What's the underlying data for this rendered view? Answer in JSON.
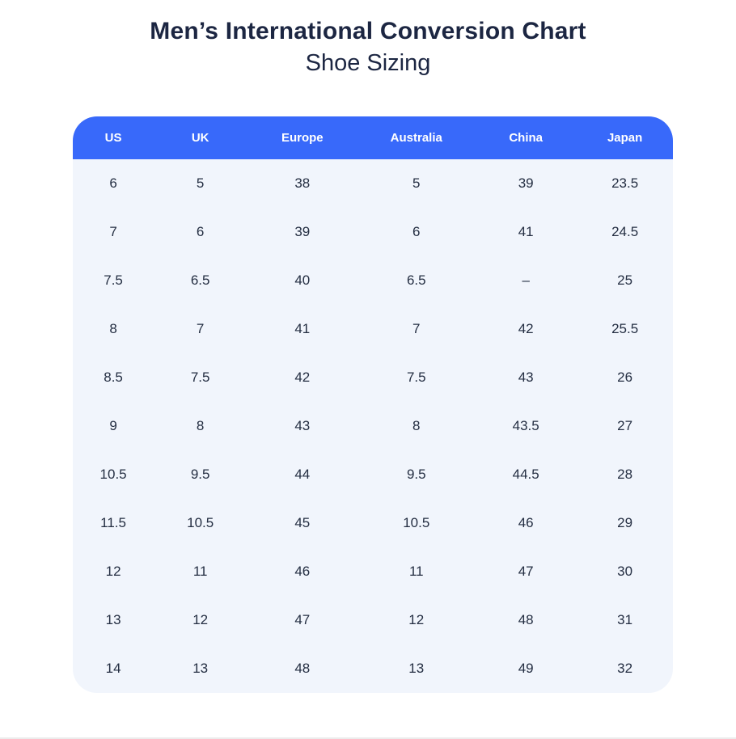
{
  "page": {
    "title": "Men’s International Conversion Chart",
    "subtitle": "Shoe Sizing"
  },
  "colors": {
    "header_bg": "#3869FA",
    "header_text": "#FFFFFF",
    "table_bg": "#F1F5FC",
    "title_text": "#1C2642",
    "cell_text": "#242E42",
    "page_bg": "#FFFFFF",
    "bottom_rule": "#ECECEC"
  },
  "chart_data": {
    "type": "table",
    "title": "Men’s International Conversion Chart",
    "subtitle": "Shoe Sizing",
    "columns": [
      "US",
      "UK",
      "Europe",
      "Australia",
      "China",
      "Japan"
    ],
    "rows": [
      [
        "6",
        "5",
        "38",
        "5",
        "39",
        "23.5"
      ],
      [
        "7",
        "6",
        "39",
        "6",
        "41",
        "24.5"
      ],
      [
        "7.5",
        "6.5",
        "40",
        "6.5",
        "–",
        "25"
      ],
      [
        "8",
        "7",
        "41",
        "7",
        "42",
        "25.5"
      ],
      [
        "8.5",
        "7.5",
        "42",
        "7.5",
        "43",
        "26"
      ],
      [
        "9",
        "8",
        "43",
        "8",
        "43.5",
        "27"
      ],
      [
        "10.5",
        "9.5",
        "44",
        "9.5",
        "44.5",
        "28"
      ],
      [
        "11.5",
        "10.5",
        "45",
        "10.5",
        "46",
        "29"
      ],
      [
        "12",
        "11",
        "46",
        "11",
        "47",
        "30"
      ],
      [
        "13",
        "12",
        "47",
        "12",
        "48",
        "31"
      ],
      [
        "14",
        "13",
        "48",
        "13",
        "49",
        "32"
      ]
    ]
  }
}
